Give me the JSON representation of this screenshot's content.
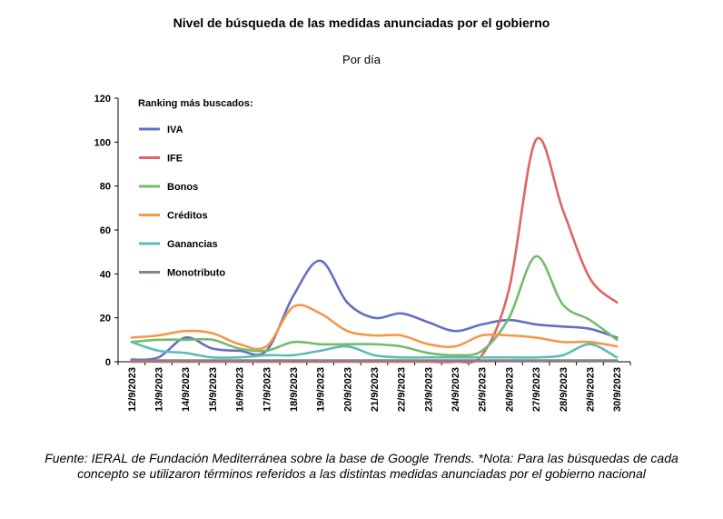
{
  "chart_data": {
    "type": "line",
    "title": "Nivel de búsqueda de las medidas anunciadas por el gobierno",
    "subtitle": "Por día",
    "xlabel": "",
    "ylabel": "",
    "ylim": [
      0,
      120
    ],
    "yticks": [
      0,
      20,
      40,
      60,
      80,
      100,
      120
    ],
    "legend_title": "Ranking más buscados:",
    "legend_position": "top-left",
    "grid": false,
    "x": [
      "12/9/2023",
      "13/9/2023",
      "14/9/2023",
      "15/9/2023",
      "16/9/2023",
      "17/9/2023",
      "18/9/2023",
      "19/9/2023",
      "20/9/2023",
      "21/9/2023",
      "22/9/2023",
      "23/9/2023",
      "24/9/2023",
      "25/9/2023",
      "26/9/2023",
      "27/9/2023",
      "28/9/2023",
      "29/9/2023",
      "30/9/2023"
    ],
    "series": [
      {
        "name": "IVA",
        "color": "#6470c0",
        "values": [
          1,
          2,
          11,
          6,
          5,
          5,
          30,
          46,
          27,
          20,
          22,
          18,
          14,
          17,
          19,
          17,
          16,
          15,
          11
        ]
      },
      {
        "name": "IFE",
        "color": "#e06466",
        "values": [
          0,
          0,
          0,
          0,
          0,
          0,
          0,
          0,
          0,
          0,
          0,
          0,
          0,
          3,
          33,
          101,
          69,
          38,
          27
        ]
      },
      {
        "name": "Bonos",
        "color": "#74bc6c",
        "values": [
          9,
          10,
          10,
          10,
          6,
          5,
          9,
          8,
          8,
          8,
          7,
          4,
          3,
          5,
          20,
          48,
          26,
          19,
          10
        ]
      },
      {
        "name": "Créditos",
        "color": "#f2994a",
        "values": [
          11,
          12,
          14,
          13,
          8,
          7,
          25,
          22,
          14,
          12,
          12,
          8,
          7,
          12,
          12,
          11,
          9,
          9,
          7
        ]
      },
      {
        "name": "Ganancias",
        "color": "#5bbdb6",
        "values": [
          9,
          5,
          4,
          2,
          2,
          3,
          3,
          5,
          7,
          3,
          2,
          2,
          2,
          2,
          2,
          2,
          3,
          8,
          2
        ]
      },
      {
        "name": "Monotributo",
        "color": "#8c7f86",
        "values": [
          0.5,
          0.5,
          0.5,
          0.5,
          0.5,
          0.5,
          0.5,
          0.5,
          0.5,
          0.5,
          0.5,
          0.5,
          0.5,
          0.5,
          0.5,
          0.5,
          0.5,
          0.5,
          0.5
        ]
      }
    ]
  },
  "footnote": "Fuente: IERAL de Fundación Mediterránea sobre la base de Google Trends. *Nota: Para las búsquedas de cada concepto se utilizaron términos referidos a las distintas medidas anunciadas por el gobierno nacional"
}
